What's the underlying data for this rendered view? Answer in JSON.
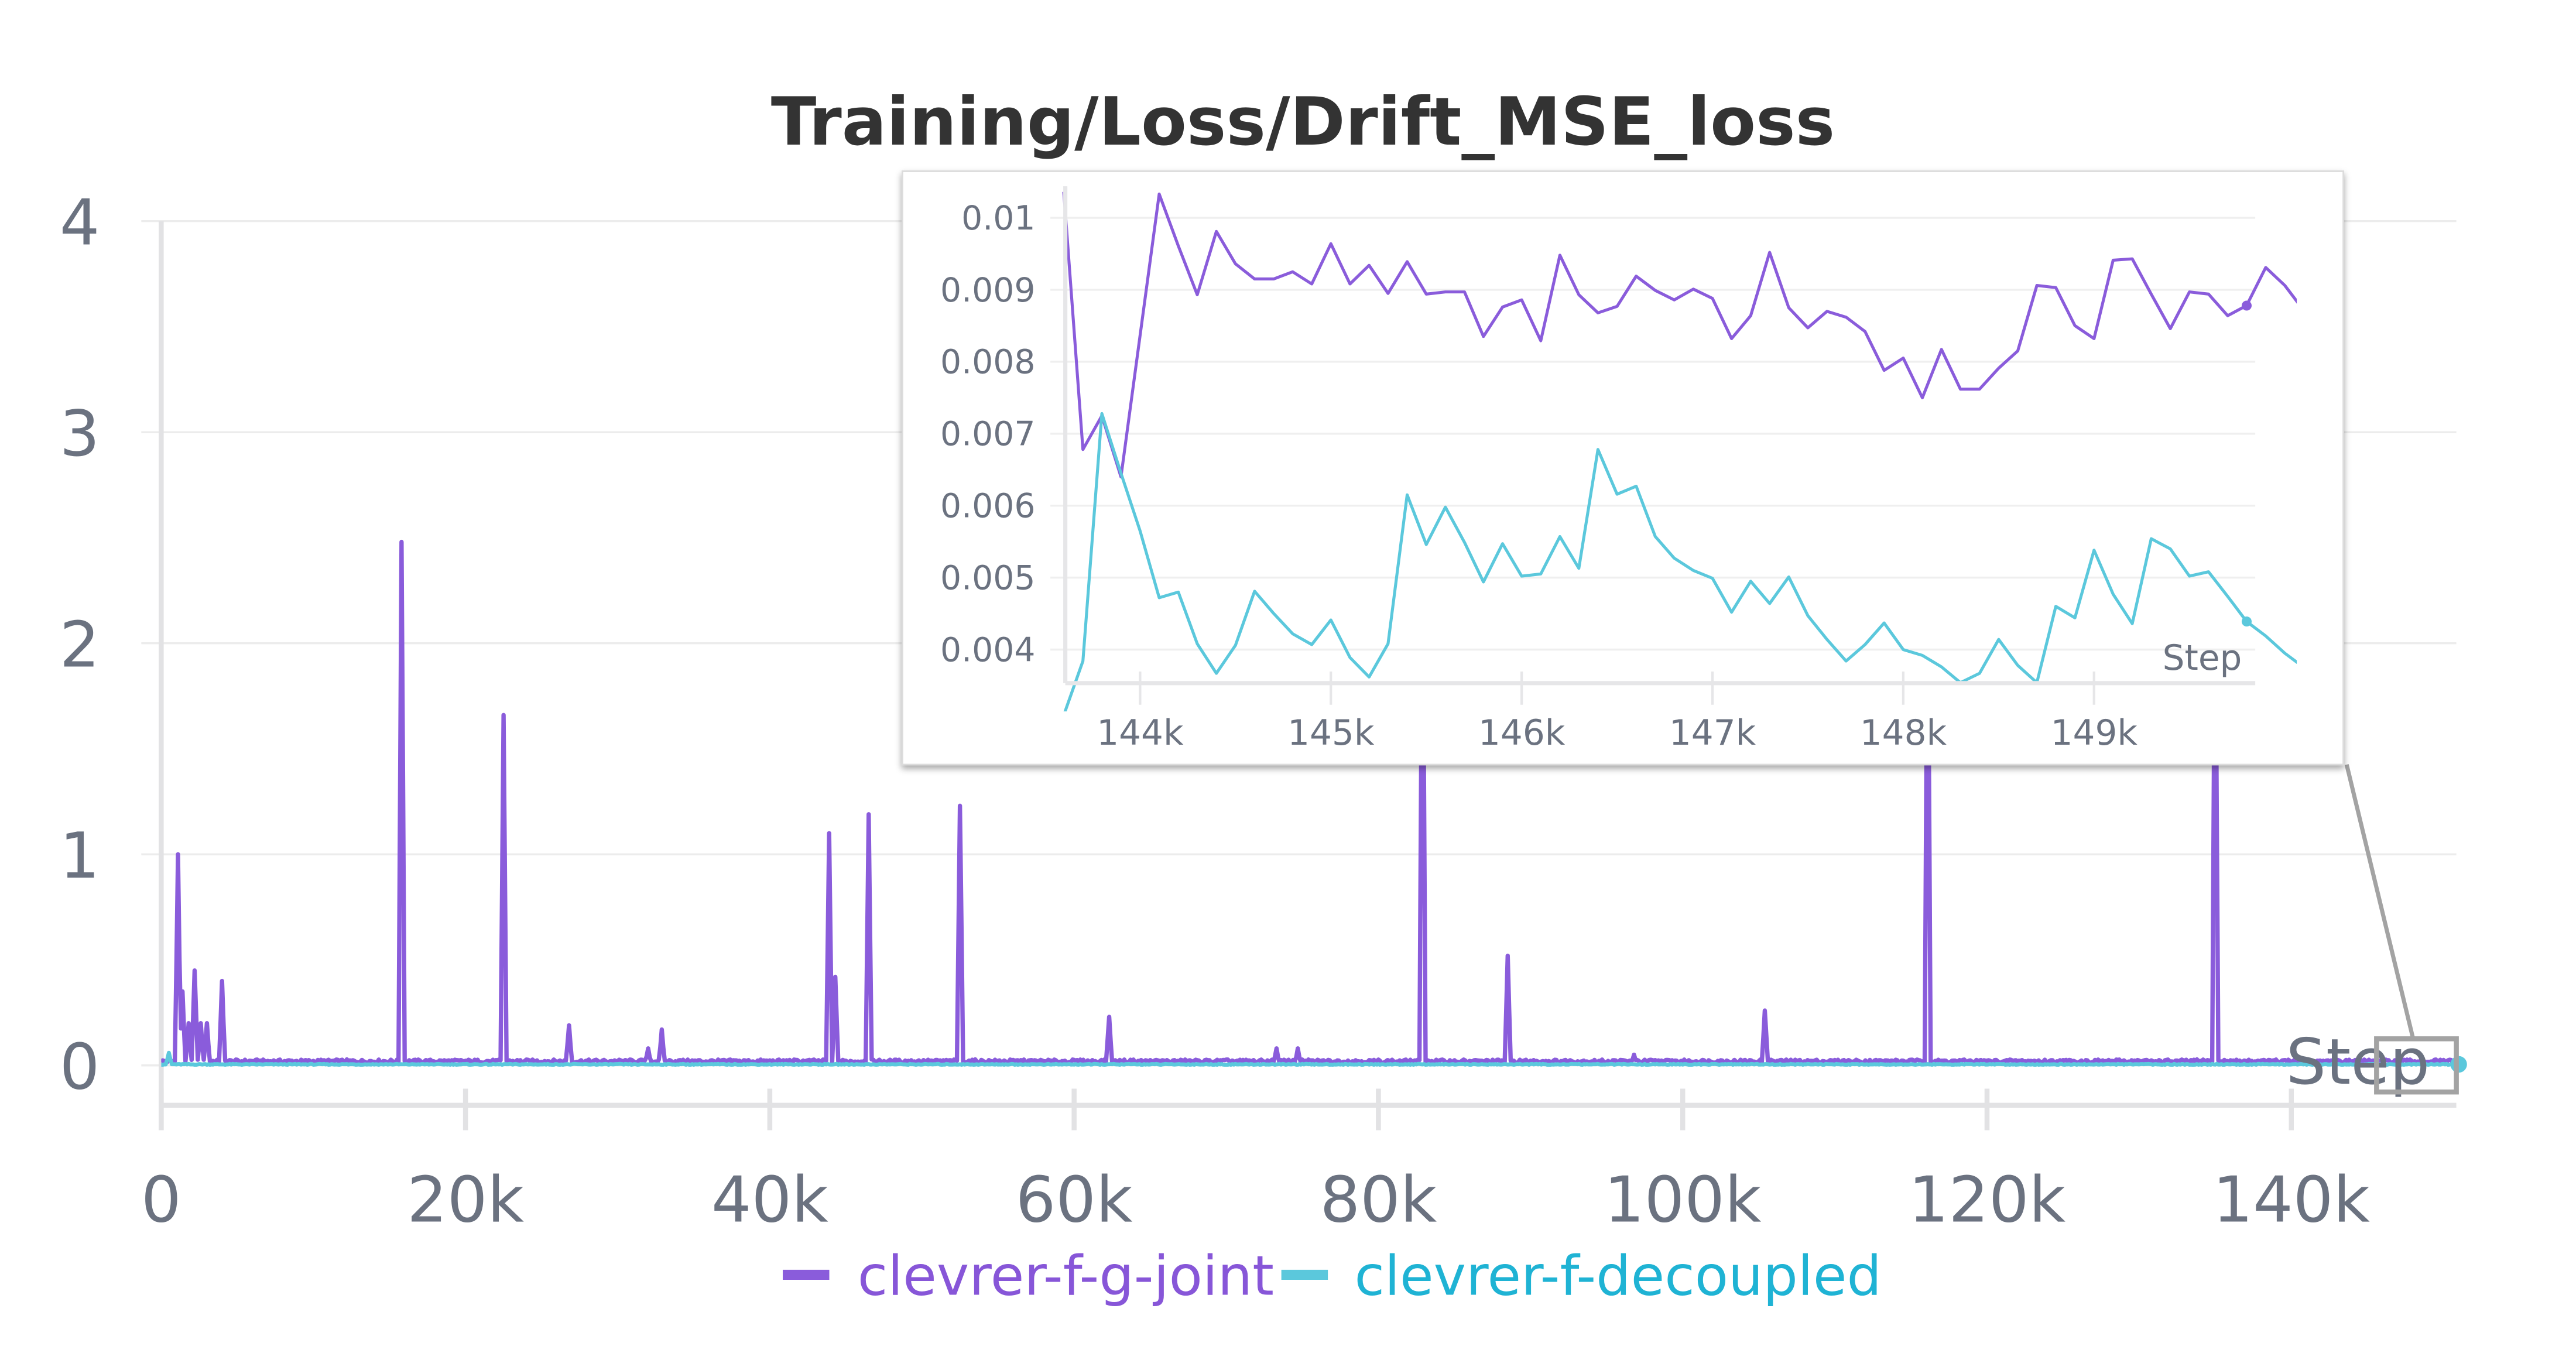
{
  "chart_data": [
    {
      "type": "line",
      "title": "Training/Loss/Drift_MSE_loss",
      "xlabel": "Step",
      "ylabel": "",
      "xlim": [
        0,
        151000
      ],
      "ylim": [
        0,
        4
      ],
      "xticks": [
        0,
        20000,
        40000,
        60000,
        80000,
        100000,
        120000,
        140000
      ],
      "xtick_labels": [
        "0",
        "20k",
        "40k",
        "60k",
        "80k",
        "100k",
        "120k",
        "140k"
      ],
      "yticks": [
        0,
        1,
        2,
        3,
        4
      ],
      "ytick_labels": [
        "0",
        "1",
        "2",
        "3",
        "4"
      ],
      "grid": true,
      "legend": "bottom",
      "series": [
        {
          "name": "clevrer-f-g-joint",
          "color": "#8a5cdb",
          "baseline": 0.02,
          "spikes": [
            [
              1100,
              1.0
            ],
            [
              1400,
              0.35
            ],
            [
              1800,
              0.2
            ],
            [
              2200,
              0.45
            ],
            [
              2600,
              0.2
            ],
            [
              3000,
              0.2
            ],
            [
              4000,
              0.4
            ],
            [
              15800,
              2.48
            ],
            [
              22500,
              1.66
            ],
            [
              26800,
              0.19
            ],
            [
              32000,
              0.08
            ],
            [
              32900,
              0.17
            ],
            [
              43900,
              1.1
            ],
            [
              44300,
              0.42
            ],
            [
              46500,
              1.19
            ],
            [
              52500,
              1.23
            ],
            [
              62300,
              0.23
            ],
            [
              73300,
              0.08
            ],
            [
              74700,
              0.08
            ],
            [
              82900,
              2.5
            ],
            [
              88500,
              0.52
            ],
            [
              96800,
              0.05
            ],
            [
              105400,
              0.26
            ],
            [
              116100,
              2.5
            ],
            [
              135000,
              2.5
            ]
          ]
        },
        {
          "name": "clevrer-f-decoupled",
          "color": "#5bc8dc",
          "baseline": 0.005,
          "spikes": [
            [
              500,
              0.06
            ]
          ]
        }
      ]
    },
    {
      "type": "line",
      "title": "",
      "xlabel": "Step",
      "xlim": [
        143600,
        149850
      ],
      "ylim": [
        0.0035,
        0.0104
      ],
      "xticks": [
        144000,
        145000,
        146000,
        147000,
        148000,
        149000
      ],
      "xtick_labels": [
        "144k",
        "145k",
        "146k",
        "147k",
        "148k",
        "149k"
      ],
      "yticks": [
        0.01,
        0.009,
        0.008,
        0.007,
        0.006,
        0.005,
        0.004
      ],
      "ytick_labels": [
        "0.01",
        "0.009",
        "0.008",
        "0.007",
        "0.006",
        "0.005",
        "0.004"
      ],
      "grid": true,
      "series": [
        {
          "name": "clevrer-f-g-joint",
          "color": "#8a5cdb",
          "x": [
            143600,
            143700,
            143800,
            143900,
            144100,
            144200,
            144300,
            144400,
            144500,
            144600,
            144700,
            144800,
            144900,
            145000,
            145100,
            145200,
            145300,
            145400,
            145500,
            145600,
            145700,
            145800,
            145900,
            146000,
            146100,
            146200,
            146300,
            146400,
            146500,
            146600,
            146700,
            146800,
            146900,
            147000,
            147100,
            147200,
            147300,
            147400,
            147500,
            147600,
            147700,
            147800,
            147900,
            148000,
            148100,
            148200,
            148300,
            148400,
            148500,
            148600,
            148700,
            148800,
            148900,
            149000,
            149100,
            149200,
            149300,
            149400,
            149500,
            149600,
            149700,
            149800,
            149900,
            150000,
            150100
          ],
          "y": [
            0.01036,
            0.00678,
            0.00725,
            0.0064,
            0.01033,
            0.00961,
            0.00893,
            0.00981,
            0.00936,
            0.00915,
            0.00915,
            0.00925,
            0.00908,
            0.00964,
            0.00908,
            0.00934,
            0.00895,
            0.00939,
            0.00894,
            0.00897,
            0.00897,
            0.00835,
            0.00876,
            0.00886,
            0.00829,
            0.00948,
            0.00893,
            0.00868,
            0.00877,
            0.00919,
            0.00899,
            0.00886,
            0.00901,
            0.00888,
            0.00832,
            0.00864,
            0.00952,
            0.00875,
            0.00847,
            0.0087,
            0.00862,
            0.00842,
            0.00788,
            0.00805,
            0.0075,
            0.00817,
            0.00762,
            0.00762,
            0.00791,
            0.00815,
            0.00906,
            0.00903,
            0.0085,
            0.00832,
            0.00941,
            0.00943,
            0.00894,
            0.00846,
            0.00897,
            0.00894,
            0.00864,
            0.00878,
            0.00931,
            0.00906,
            0.00871
          ],
          "marker_at": 149800
        },
        {
          "name": "clevrer-f-decoupled",
          "color": "#5bc8dc",
          "x": [
            143600,
            143700,
            143800,
            143900,
            144000,
            144100,
            144200,
            144300,
            144400,
            144500,
            144600,
            144700,
            144800,
            144900,
            145000,
            145100,
            145200,
            145300,
            145400,
            145500,
            145600,
            145700,
            145800,
            145900,
            146000,
            146100,
            146200,
            146300,
            146400,
            146500,
            146600,
            146700,
            146800,
            146900,
            147000,
            147100,
            147200,
            147300,
            147400,
            147500,
            147600,
            147700,
            147800,
            147900,
            148000,
            148100,
            148200,
            148300,
            148400,
            148500,
            148600,
            148700,
            148800,
            148900,
            149000,
            149100,
            149200,
            149300,
            149400,
            149500,
            149600,
            149700,
            149800,
            149900,
            150000,
            150100
          ],
          "y": [
            0.00309,
            0.00384,
            0.00728,
            0.00645,
            0.00565,
            0.00472,
            0.0048,
            0.00408,
            0.00367,
            0.00406,
            0.00481,
            0.0045,
            0.00422,
            0.00407,
            0.00441,
            0.00389,
            0.00362,
            0.00408,
            0.00615,
            0.00546,
            0.00598,
            0.00549,
            0.00494,
            0.00547,
            0.00502,
            0.00505,
            0.00557,
            0.00513,
            0.00678,
            0.00616,
            0.00627,
            0.00557,
            0.00527,
            0.0051,
            0.00499,
            0.00452,
            0.00495,
            0.00464,
            0.00501,
            0.00447,
            0.00414,
            0.00384,
            0.00407,
            0.00437,
            0.004,
            0.00392,
            0.00376,
            0.00354,
            0.00367,
            0.00414,
            0.00378,
            0.00354,
            0.0046,
            0.00444,
            0.00538,
            0.00477,
            0.00436,
            0.00554,
            0.0054,
            0.00502,
            0.00508,
            0.00474,
            0.00439,
            0.00419,
            0.00395,
            0.00375
          ],
          "marker_at": 149800
        }
      ]
    }
  ]
}
